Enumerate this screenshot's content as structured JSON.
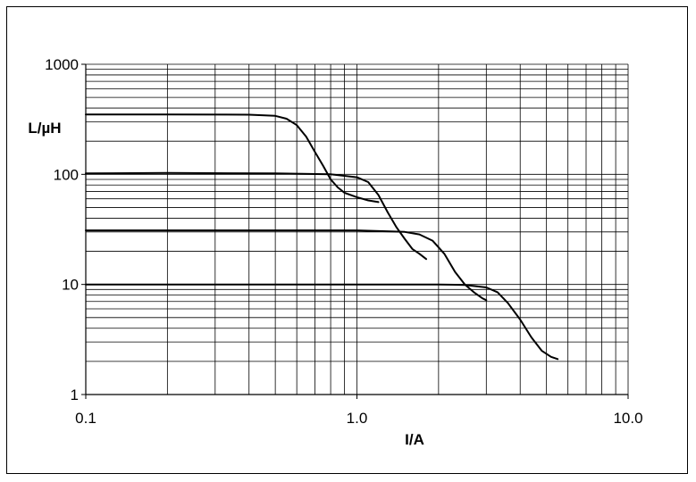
{
  "chart_data": {
    "type": "line",
    "title": "",
    "xlabel": "I/A",
    "ylabel": "L/µH",
    "x_scale": "log",
    "y_scale": "log",
    "xlim": [
      0.1,
      10.0
    ],
    "ylim": [
      1,
      1000
    ],
    "grid": true,
    "legend": "none",
    "x_ticks": [
      "0.1",
      "1.0",
      "10.0"
    ],
    "y_ticks": [
      "1000",
      "100",
      "10",
      "1"
    ],
    "line_color": "#000000",
    "series": [
      {
        "x": [
          0.1,
          0.2,
          0.4,
          0.5,
          0.55,
          0.6,
          0.65,
          0.7,
          0.75,
          0.8,
          0.85,
          0.9,
          1.0,
          1.1,
          1.2
        ],
        "y": [
          350,
          350,
          348,
          340,
          320,
          280,
          220,
          160,
          120,
          90,
          76,
          68,
          62,
          58,
          56
        ]
      },
      {
        "x": [
          0.1,
          0.2,
          0.5,
          0.8,
          1.0,
          1.1,
          1.2,
          1.3,
          1.4,
          1.5,
          1.6,
          1.7,
          1.8
        ],
        "y": [
          102,
          103,
          102,
          100,
          94,
          85,
          65,
          45,
          33,
          26,
          21,
          19,
          17
        ]
      },
      {
        "x": [
          0.1,
          0.5,
          1.0,
          1.5,
          1.7,
          1.9,
          2.1,
          2.3,
          2.5,
          2.7,
          2.9,
          3.0
        ],
        "y": [
          31,
          31,
          31,
          30,
          28.5,
          25,
          19,
          13,
          10,
          8.5,
          7.5,
          7.2
        ]
      },
      {
        "x": [
          0.1,
          1.0,
          2.0,
          2.5,
          3.0,
          3.3,
          3.6,
          4.0,
          4.4,
          4.8,
          5.2,
          5.5
        ],
        "y": [
          10,
          10,
          10,
          9.9,
          9.4,
          8.5,
          6.8,
          4.8,
          3.3,
          2.5,
          2.2,
          2.1
        ]
      }
    ]
  }
}
